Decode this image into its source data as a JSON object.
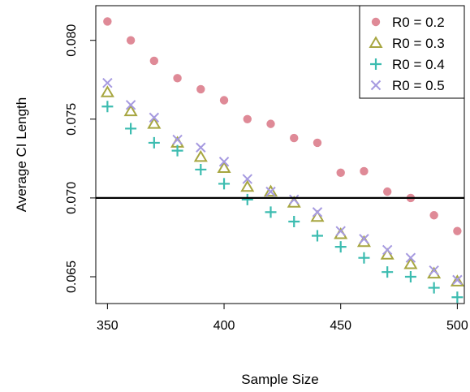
{
  "chart_data": {
    "type": "scatter",
    "title": "",
    "xlabel": "Sample Size",
    "ylabel": "Average CI Length",
    "xlim": [
      345,
      503
    ],
    "ylim": [
      0.0633,
      0.0822
    ],
    "x_ticks": [
      350,
      400,
      450,
      500
    ],
    "x_tick_labels": [
      "350",
      "400",
      "450",
      "500"
    ],
    "y_ticks": [
      0.065,
      0.07,
      0.075,
      0.08
    ],
    "y_tick_labels": [
      "0.065",
      "0.070",
      "0.075",
      "0.080"
    ],
    "reference_line_y": 0.07,
    "grid": false,
    "legend_position": "top-right",
    "x": [
      350,
      360,
      370,
      380,
      390,
      400,
      410,
      420,
      430,
      440,
      450,
      460,
      470,
      480,
      490,
      500
    ],
    "series": [
      {
        "name": "R0 = 0.2",
        "marker": "circle",
        "color": "#DF8A97",
        "values": [
          0.0812,
          0.08,
          0.0787,
          0.0776,
          0.0769,
          0.0762,
          0.075,
          0.0747,
          0.0738,
          0.0735,
          0.0716,
          0.0717,
          0.0704,
          0.07,
          0.0689,
          0.0679
        ]
      },
      {
        "name": "R0 = 0.3",
        "marker": "triangle",
        "color": "#A7A640",
        "values": [
          0.0767,
          0.0755,
          0.0747,
          0.0735,
          0.0726,
          0.0719,
          0.0707,
          0.0704,
          0.0697,
          0.0688,
          0.0677,
          0.0672,
          0.0664,
          0.0658,
          0.0652,
          0.0647
        ]
      },
      {
        "name": "R0 = 0.4",
        "marker": "plus",
        "color": "#3CBCB0",
        "values": [
          0.0758,
          0.0744,
          0.0735,
          0.073,
          0.0718,
          0.0709,
          0.0699,
          0.0691,
          0.0685,
          0.0676,
          0.0669,
          0.0662,
          0.0653,
          0.065,
          0.0643,
          0.0637
        ]
      },
      {
        "name": "R0 = 0.5",
        "marker": "x",
        "color": "#A69AE0",
        "values": [
          0.0773,
          0.0759,
          0.0751,
          0.0737,
          0.0732,
          0.0723,
          0.0712,
          0.0704,
          0.0699,
          0.0691,
          0.0679,
          0.0674,
          0.0667,
          0.0662,
          0.0654,
          0.0648
        ]
      }
    ]
  }
}
